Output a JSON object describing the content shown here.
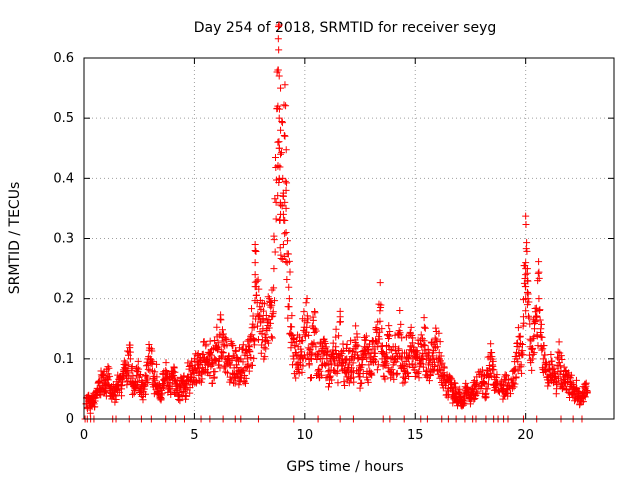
{
  "chart_data": {
    "type": "scatter",
    "title": "Day 254 of 2018, SRMTID for receiver seyg",
    "xlabel": "GPS time / hours",
    "ylabel": "SRMTID / TECUs",
    "xlim": [
      0,
      24
    ],
    "ylim": [
      0,
      0.6
    ],
    "xticks": [
      0,
      5,
      10,
      15,
      20
    ],
    "yticks": [
      0,
      0.1,
      0.2,
      0.3,
      0.4,
      0.5,
      0.6
    ],
    "xtick_labels": [
      "0",
      "5",
      "10",
      "15",
      "20"
    ],
    "ytick_labels": [
      "0",
      "0.1",
      "0.2",
      "0.3",
      "0.4",
      "0.5",
      "0.6"
    ],
    "grid": true,
    "marker": "plus",
    "color": "#ff0000",
    "series": [
      {
        "name": "SRMTID",
        "note": "representative sample of the dense point cloud (hour, TECU)",
        "points": [
          [
            0.1,
            0.025
          ],
          [
            0.2,
            0.03
          ],
          [
            0.3,
            0.02
          ],
          [
            0.4,
            0.035
          ],
          [
            0.5,
            0.03
          ],
          [
            0.6,
            0.04
          ],
          [
            0.7,
            0.05
          ],
          [
            0.8,
            0.07
          ],
          [
            0.9,
            0.06
          ],
          [
            1.0,
            0.055
          ],
          [
            1.1,
            0.075
          ],
          [
            1.2,
            0.05
          ],
          [
            1.3,
            0.045
          ],
          [
            1.4,
            0.04
          ],
          [
            1.5,
            0.055
          ],
          [
            1.6,
            0.065
          ],
          [
            1.7,
            0.05
          ],
          [
            1.8,
            0.07
          ],
          [
            1.9,
            0.08
          ],
          [
            2.0,
            0.09
          ],
          [
            2.1,
            0.1
          ],
          [
            2.2,
            0.06
          ],
          [
            2.3,
            0.05
          ],
          [
            2.4,
            0.085
          ],
          [
            2.5,
            0.07
          ],
          [
            2.6,
            0.05
          ],
          [
            2.7,
            0.045
          ],
          [
            2.8,
            0.06
          ],
          [
            2.9,
            0.09
          ],
          [
            3.0,
            0.1
          ],
          [
            3.1,
            0.08
          ],
          [
            3.2,
            0.06
          ],
          [
            3.3,
            0.07
          ],
          [
            3.4,
            0.05
          ],
          [
            3.5,
            0.04
          ],
          [
            3.6,
            0.065
          ],
          [
            3.7,
            0.075
          ],
          [
            3.8,
            0.06
          ],
          [
            3.9,
            0.05
          ],
          [
            4.0,
            0.07
          ],
          [
            4.1,
            0.065
          ],
          [
            4.2,
            0.05
          ],
          [
            4.3,
            0.04
          ],
          [
            4.4,
            0.055
          ],
          [
            4.5,
            0.06
          ],
          [
            4.6,
            0.05
          ],
          [
            4.7,
            0.07
          ],
          [
            4.8,
            0.065
          ],
          [
            4.9,
            0.08
          ],
          [
            5.0,
            0.085
          ],
          [
            5.1,
            0.08
          ],
          [
            5.2,
            0.09
          ],
          [
            5.3,
            0.075
          ],
          [
            5.4,
            0.1
          ],
          [
            5.5,
            0.095
          ],
          [
            5.6,
            0.1
          ],
          [
            5.7,
            0.11
          ],
          [
            5.8,
            0.09
          ],
          [
            5.9,
            0.1
          ],
          [
            6.0,
            0.12
          ],
          [
            6.1,
            0.09
          ],
          [
            6.2,
            0.14
          ],
          [
            6.3,
            0.11
          ],
          [
            6.4,
            0.1
          ],
          [
            6.5,
            0.095
          ],
          [
            6.6,
            0.09
          ],
          [
            6.7,
            0.1
          ],
          [
            6.8,
            0.085
          ],
          [
            6.9,
            0.09
          ],
          [
            7.0,
            0.08
          ],
          [
            7.1,
            0.1
          ],
          [
            7.2,
            0.095
          ],
          [
            7.3,
            0.085
          ],
          [
            7.4,
            0.1
          ],
          [
            7.5,
            0.12
          ],
          [
            7.6,
            0.14
          ],
          [
            7.7,
            0.13
          ],
          [
            7.8,
            0.22
          ],
          [
            7.9,
            0.17
          ],
          [
            8.0,
            0.16
          ],
          [
            8.1,
            0.15
          ],
          [
            8.2,
            0.14
          ],
          [
            8.3,
            0.13
          ],
          [
            8.4,
            0.2
          ],
          [
            8.5,
            0.17
          ],
          [
            8.6,
            0.25
          ],
          [
            8.7,
            0.36
          ],
          [
            8.8,
            0.58
          ],
          [
            8.85,
            0.45
          ],
          [
            8.9,
            0.34
          ],
          [
            9.0,
            0.4
          ],
          [
            9.1,
            0.47
          ],
          [
            9.2,
            0.26
          ],
          [
            9.3,
            0.2
          ],
          [
            9.4,
            0.14
          ],
          [
            9.5,
            0.1
          ],
          [
            9.6,
            0.09
          ],
          [
            9.7,
            0.12
          ],
          [
            9.8,
            0.09
          ],
          [
            9.9,
            0.13
          ],
          [
            10.0,
            0.14
          ],
          [
            10.1,
            0.16
          ],
          [
            10.2,
            0.09
          ],
          [
            10.3,
            0.1
          ],
          [
            10.4,
            0.15
          ],
          [
            10.5,
            0.12
          ],
          [
            10.6,
            0.08
          ],
          [
            10.7,
            0.1
          ],
          [
            10.8,
            0.09
          ],
          [
            10.9,
            0.11
          ],
          [
            11.0,
            0.1
          ],
          [
            11.1,
            0.07
          ],
          [
            11.2,
            0.09
          ],
          [
            11.3,
            0.1
          ],
          [
            11.4,
            0.12
          ],
          [
            11.5,
            0.09
          ],
          [
            11.6,
            0.17
          ],
          [
            11.7,
            0.1
          ],
          [
            11.8,
            0.08
          ],
          [
            11.9,
            0.1
          ],
          [
            12.0,
            0.09
          ],
          [
            12.1,
            0.1
          ],
          [
            12.2,
            0.08
          ],
          [
            12.3,
            0.12
          ],
          [
            12.4,
            0.1
          ],
          [
            12.5,
            0.07
          ],
          [
            12.6,
            0.09
          ],
          [
            12.7,
            0.12
          ],
          [
            12.8,
            0.1
          ],
          [
            12.9,
            0.09
          ],
          [
            13.0,
            0.11
          ],
          [
            13.1,
            0.1
          ],
          [
            13.2,
            0.13
          ],
          [
            13.3,
            0.12
          ],
          [
            13.4,
            0.18
          ],
          [
            13.5,
            0.1
          ],
          [
            13.6,
            0.09
          ],
          [
            13.7,
            0.11
          ],
          [
            13.8,
            0.12
          ],
          [
            13.9,
            0.1
          ],
          [
            14.0,
            0.09
          ],
          [
            14.1,
            0.12
          ],
          [
            14.2,
            0.1
          ],
          [
            14.3,
            0.14
          ],
          [
            14.4,
            0.1
          ],
          [
            14.5,
            0.08
          ],
          [
            14.6,
            0.11
          ],
          [
            14.7,
            0.1
          ],
          [
            14.8,
            0.12
          ],
          [
            14.9,
            0.1
          ],
          [
            15.0,
            0.09
          ],
          [
            15.1,
            0.11
          ],
          [
            15.2,
            0.1
          ],
          [
            15.3,
            0.12
          ],
          [
            15.4,
            0.13
          ],
          [
            15.5,
            0.1
          ],
          [
            15.6,
            0.09
          ],
          [
            15.7,
            0.1
          ],
          [
            15.8,
            0.11
          ],
          [
            15.9,
            0.12
          ],
          [
            16.0,
            0.12
          ],
          [
            16.1,
            0.1
          ],
          [
            16.2,
            0.09
          ],
          [
            16.3,
            0.07
          ],
          [
            16.4,
            0.06
          ],
          [
            16.5,
            0.05
          ],
          [
            16.6,
            0.06
          ],
          [
            16.7,
            0.04
          ],
          [
            16.8,
            0.05
          ],
          [
            16.9,
            0.03
          ],
          [
            17.0,
            0.04
          ],
          [
            17.1,
            0.03
          ],
          [
            17.2,
            0.035
          ],
          [
            17.3,
            0.05
          ],
          [
            17.4,
            0.04
          ],
          [
            17.5,
            0.03
          ],
          [
            17.6,
            0.045
          ],
          [
            17.7,
            0.05
          ],
          [
            17.8,
            0.06
          ],
          [
            18.0,
            0.07
          ],
          [
            18.1,
            0.06
          ],
          [
            18.2,
            0.05
          ],
          [
            18.3,
            0.08
          ],
          [
            18.4,
            0.1
          ],
          [
            18.5,
            0.09
          ],
          [
            18.6,
            0.07
          ],
          [
            18.7,
            0.06
          ],
          [
            18.9,
            0.05
          ],
          [
            19.0,
            0.045
          ],
          [
            19.1,
            0.06
          ],
          [
            19.2,
            0.05
          ],
          [
            19.4,
            0.06
          ],
          [
            19.5,
            0.08
          ],
          [
            19.6,
            0.1
          ],
          [
            19.7,
            0.12
          ],
          [
            19.8,
            0.09
          ],
          [
            19.9,
            0.17
          ],
          [
            20.0,
            0.25
          ],
          [
            20.1,
            0.2
          ],
          [
            20.2,
            0.12
          ],
          [
            20.3,
            0.1
          ],
          [
            20.4,
            0.15
          ],
          [
            20.5,
            0.17
          ],
          [
            20.6,
            0.2
          ],
          [
            20.7,
            0.12
          ],
          [
            20.8,
            0.1
          ],
          [
            20.9,
            0.09
          ],
          [
            21.0,
            0.07
          ],
          [
            21.1,
            0.08
          ],
          [
            21.2,
            0.09
          ],
          [
            21.3,
            0.07
          ],
          [
            21.4,
            0.06
          ],
          [
            21.5,
            0.1
          ],
          [
            21.6,
            0.08
          ],
          [
            21.7,
            0.07
          ],
          [
            21.8,
            0.06
          ],
          [
            21.9,
            0.07
          ],
          [
            22.0,
            0.05
          ],
          [
            22.1,
            0.06
          ],
          [
            22.2,
            0.04
          ],
          [
            22.3,
            0.05
          ],
          [
            22.4,
            0.035
          ],
          [
            22.5,
            0.03
          ],
          [
            22.6,
            0.04
          ],
          [
            22.7,
            0.05
          ],
          [
            22.8,
            0.045
          ]
        ],
        "zero_points": [
          0.05,
          0.15,
          0.3,
          0.45,
          1.3,
          1.45,
          2.05,
          2.6,
          3.05,
          3.7,
          4.15,
          4.55,
          5.3,
          5.7,
          6.3,
          6.85,
          7.1,
          7.9,
          9.5,
          10.6,
          11.6,
          12.2,
          13.55,
          13.85,
          14.5,
          15.25,
          15.55,
          16.2,
          16.5,
          16.85,
          17.25,
          17.6,
          17.75,
          18.2,
          18.55,
          18.75,
          19.0,
          19.2,
          19.9,
          20.5,
          21.6,
          22.15,
          22.55
        ]
      }
    ]
  }
}
